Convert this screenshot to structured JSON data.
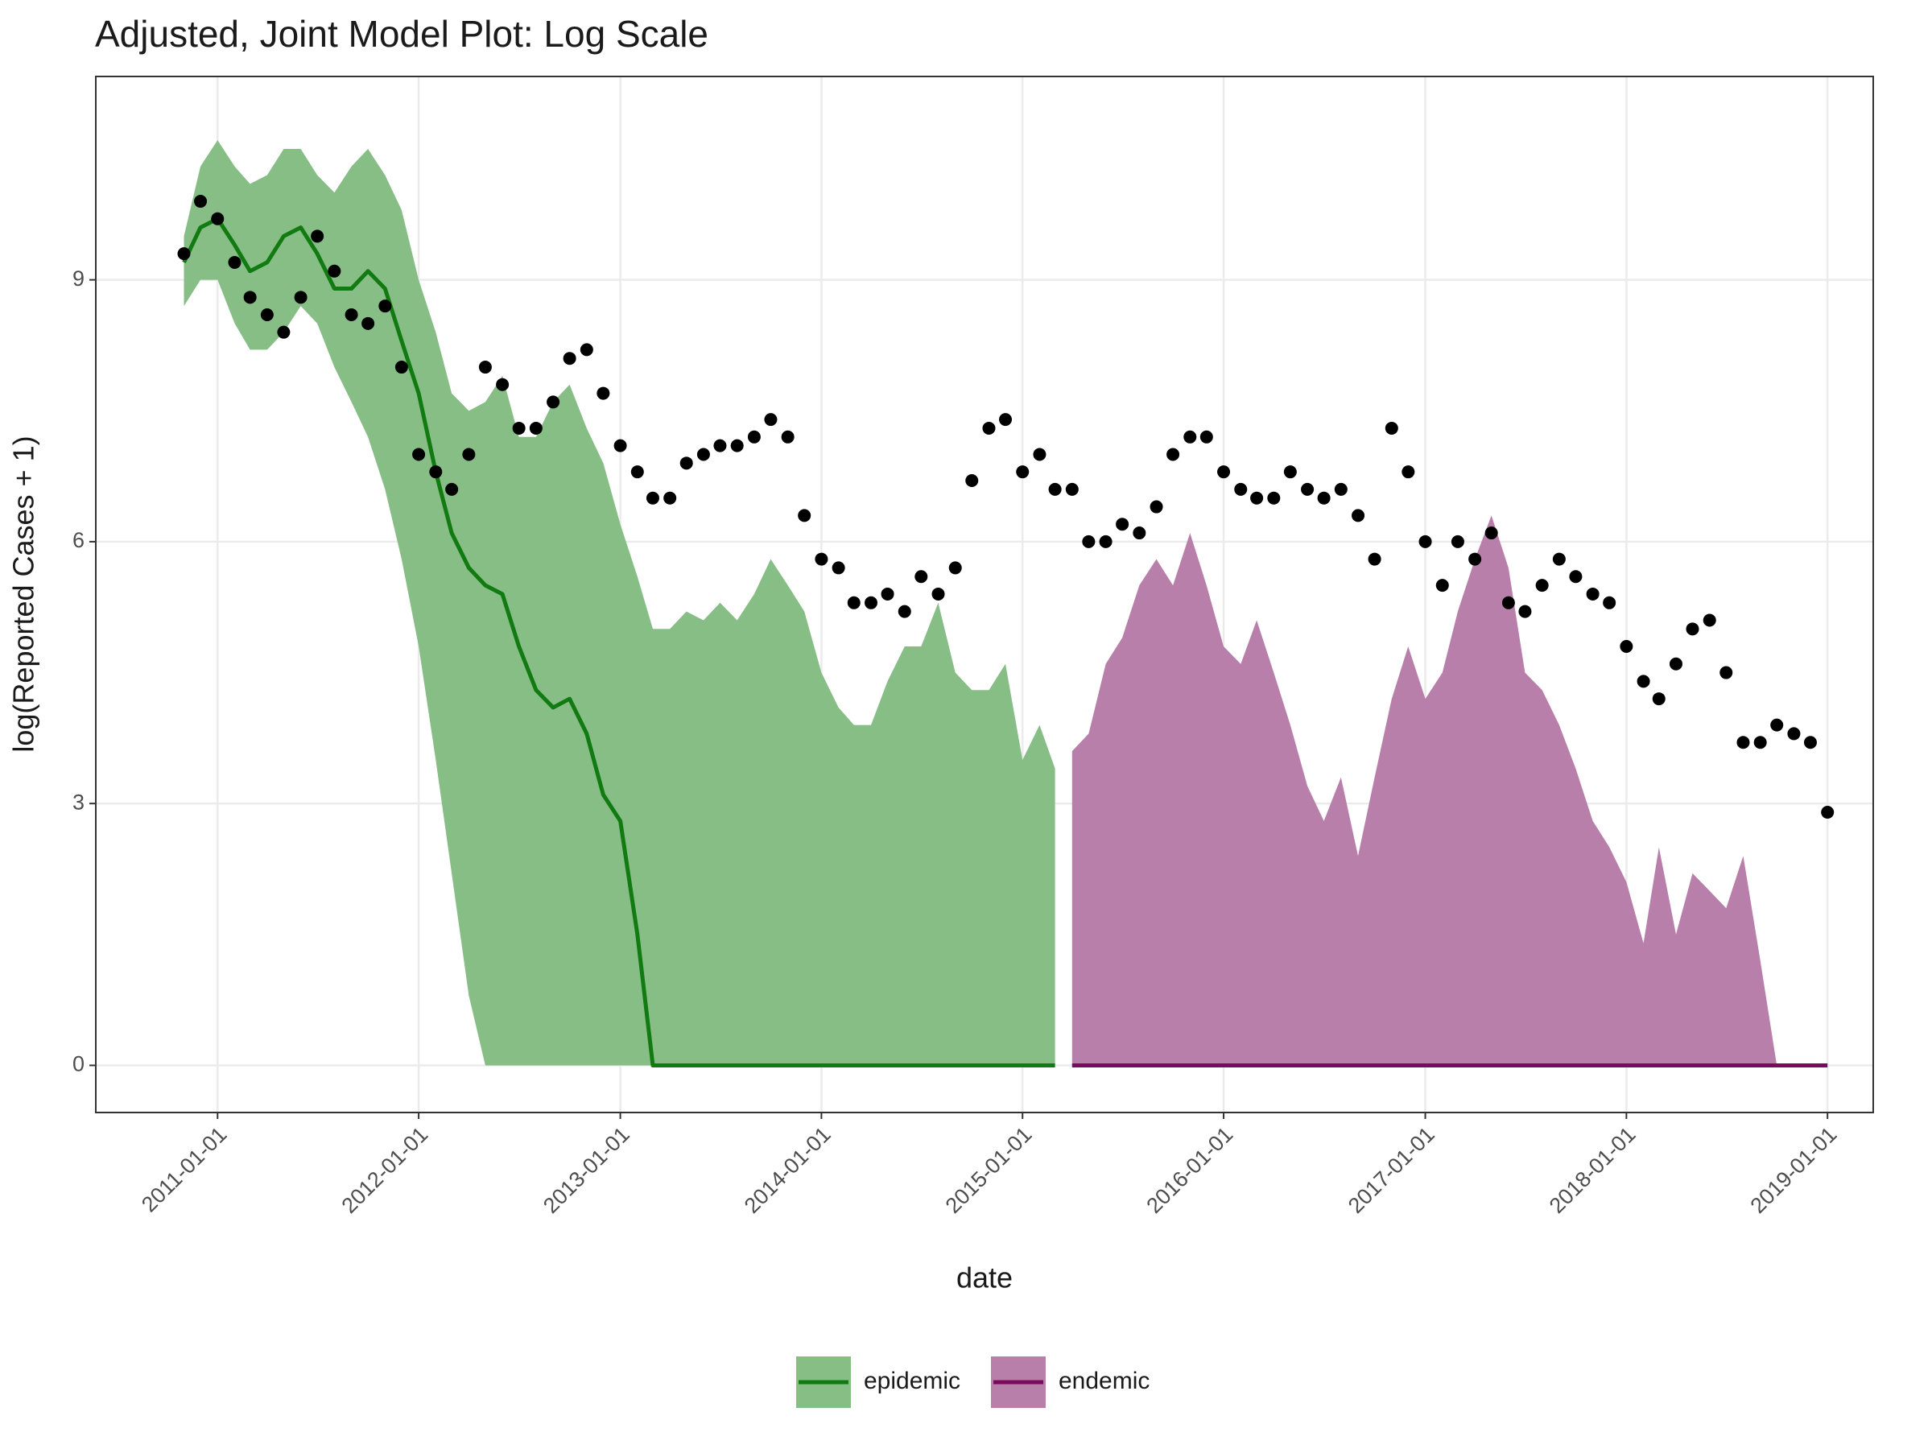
{
  "chart_data": {
    "type": "line",
    "title": "Adjusted, Joint Model Plot: Log Scale",
    "x_label": "date",
    "y_label": "log(Reported Cases + 1)",
    "xlim": [
      "2010-05-25",
      "2019-03-25"
    ],
    "xticks": [
      "2011-01-01",
      "2012-01-01",
      "2013-01-01",
      "2014-01-01",
      "2015-01-01",
      "2016-01-01",
      "2017-01-01",
      "2018-01-01",
      "2019-01-01"
    ],
    "ylim": [
      -0.54,
      11.33
    ],
    "yticks": [
      0,
      3,
      6,
      9
    ],
    "grid": true,
    "legend": "bottom",
    "x": [
      "2010-11-01",
      "2010-12-01",
      "2011-01-01",
      "2011-02-01",
      "2011-03-01",
      "2011-04-01",
      "2011-05-01",
      "2011-06-01",
      "2011-07-01",
      "2011-08-01",
      "2011-09-01",
      "2011-10-01",
      "2011-11-01",
      "2011-12-01",
      "2012-01-01",
      "2012-02-01",
      "2012-03-01",
      "2012-04-01",
      "2012-05-01",
      "2012-06-01",
      "2012-07-01",
      "2012-08-01",
      "2012-09-01",
      "2012-10-01",
      "2012-11-01",
      "2012-12-01",
      "2013-01-01",
      "2013-02-01",
      "2013-03-01",
      "2013-04-01",
      "2013-05-01",
      "2013-06-01",
      "2013-07-01",
      "2013-08-01",
      "2013-09-01",
      "2013-10-01",
      "2013-11-01",
      "2013-12-01",
      "2014-01-01",
      "2014-02-01",
      "2014-03-01",
      "2014-04-01",
      "2014-05-01",
      "2014-06-01",
      "2014-07-01",
      "2014-08-01",
      "2014-09-01",
      "2014-10-01",
      "2014-11-01",
      "2014-12-01",
      "2015-01-01",
      "2015-02-01",
      "2015-03-01",
      "2015-04-01",
      "2015-05-01",
      "2015-06-01",
      "2015-07-01",
      "2015-08-01",
      "2015-09-01",
      "2015-10-01",
      "2015-11-01",
      "2015-12-01",
      "2016-01-01",
      "2016-02-01",
      "2016-03-01",
      "2016-04-01",
      "2016-05-01",
      "2016-06-01",
      "2016-07-01",
      "2016-08-01",
      "2016-09-01",
      "2016-10-01",
      "2016-11-01",
      "2016-12-01",
      "2017-01-01",
      "2017-02-01",
      "2017-03-01",
      "2017-04-01",
      "2017-05-01",
      "2017-06-01",
      "2017-07-01",
      "2017-08-01",
      "2017-09-01",
      "2017-10-01",
      "2017-11-01",
      "2017-12-01",
      "2018-01-01",
      "2018-02-01",
      "2018-03-01",
      "2018-04-01",
      "2018-05-01",
      "2018-06-01",
      "2018-07-01",
      "2018-08-01",
      "2018-09-01",
      "2018-10-01",
      "2018-11-01",
      "2018-12-01",
      "2019-01-01"
    ],
    "observed": {
      "color": "#000000",
      "values": [
        9.3,
        9.9,
        9.7,
        9.2,
        8.8,
        8.6,
        8.4,
        8.8,
        9.5,
        9.1,
        8.6,
        8.5,
        8.7,
        8.0,
        7.0,
        6.8,
        6.6,
        7.0,
        8.0,
        7.8,
        7.3,
        7.3,
        7.6,
        8.1,
        8.2,
        7.7,
        7.1,
        6.8,
        6.5,
        6.5,
        6.9,
        7.0,
        7.1,
        7.1,
        7.2,
        7.4,
        7.2,
        6.3,
        5.8,
        5.7,
        5.3,
        5.3,
        5.4,
        5.2,
        5.6,
        5.4,
        5.7,
        6.7,
        7.3,
        7.4,
        6.8,
        7.0,
        6.6,
        6.6,
        6.0,
        6.0,
        6.2,
        6.1,
        6.4,
        7.0,
        7.2,
        7.2,
        6.8,
        6.6,
        6.5,
        6.5,
        6.8,
        6.6,
        6.5,
        6.6,
        6.3,
        5.8,
        7.3,
        6.8,
        6.0,
        5.5,
        6.0,
        5.8,
        6.1,
        5.3,
        5.2,
        5.5,
        5.8,
        5.6,
        5.4,
        5.3,
        4.8,
        4.4,
        4.2,
        4.6,
        5.0,
        5.1,
        4.5,
        3.7,
        3.7,
        3.9,
        3.8,
        3.7,
        2.9
      ]
    },
    "series": [
      {
        "name": "epidemic",
        "color": "#117a11",
        "fill": "#86be86",
        "values": [
          9.2,
          9.6,
          9.7,
          9.4,
          9.1,
          9.2,
          9.5,
          9.6,
          9.3,
          8.9,
          8.9,
          9.1,
          8.9,
          8.3,
          7.7,
          6.8,
          6.1,
          5.7,
          5.5,
          5.4,
          4.8,
          4.3,
          4.1,
          4.2,
          3.8,
          3.1,
          2.8,
          1.5,
          0,
          0,
          0,
          0,
          0,
          0,
          0,
          0,
          0,
          0,
          0,
          0,
          0,
          0,
          0,
          0,
          0,
          0,
          0,
          0,
          0,
          0,
          0,
          0,
          0,
          null,
          null,
          null,
          null,
          null,
          null,
          null,
          null,
          null,
          null,
          null,
          null,
          null,
          null,
          null,
          null,
          null,
          null,
          null,
          null,
          null,
          null,
          null,
          null,
          null,
          null,
          null,
          null,
          null,
          null,
          null,
          null,
          null,
          null,
          null,
          null,
          null,
          null,
          null,
          null,
          null,
          null,
          null,
          null,
          null,
          null
        ],
        "upper": [
          9.5,
          10.3,
          10.6,
          10.3,
          10.1,
          10.2,
          10.5,
          10.5,
          10.2,
          10.0,
          10.3,
          10.5,
          10.2,
          9.8,
          9.0,
          8.4,
          7.7,
          7.5,
          7.6,
          7.9,
          7.2,
          7.2,
          7.6,
          7.8,
          7.3,
          6.9,
          6.2,
          5.6,
          5.0,
          5.0,
          5.2,
          5.1,
          5.3,
          5.1,
          5.4,
          5.8,
          5.5,
          5.2,
          4.5,
          4.1,
          3.9,
          3.9,
          4.4,
          4.8,
          4.8,
          5.3,
          4.5,
          4.3,
          4.3,
          4.6,
          3.5,
          3.9,
          3.4,
          null,
          null,
          null,
          null,
          null,
          null,
          null,
          null,
          null,
          null,
          null,
          null,
          null,
          null,
          null,
          null,
          null,
          null,
          null,
          null,
          null,
          null,
          null,
          null,
          null,
          null,
          null,
          null,
          null,
          null,
          null,
          null,
          null,
          null,
          null,
          null,
          null,
          null,
          null,
          null,
          null,
          null,
          null,
          null,
          null,
          null
        ],
        "lower": [
          8.7,
          9.0,
          9.0,
          8.5,
          8.2,
          8.2,
          8.4,
          8.7,
          8.5,
          8.0,
          7.6,
          7.2,
          6.6,
          5.8,
          4.8,
          3.5,
          2.2,
          0.8,
          0,
          0,
          0,
          0,
          0,
          0,
          0,
          0,
          0,
          0,
          0,
          0,
          0,
          0,
          0,
          0,
          0,
          0,
          0,
          0,
          0,
          0,
          0,
          0,
          0,
          0,
          0,
          0,
          0,
          0,
          0,
          0,
          0,
          0,
          0,
          null,
          null,
          null,
          null,
          null,
          null,
          null,
          null,
          null,
          null,
          null,
          null,
          null,
          null,
          null,
          null,
          null,
          null,
          null,
          null,
          null,
          null,
          null,
          null,
          null,
          null,
          null,
          null,
          null,
          null,
          null,
          null,
          null,
          null,
          null,
          null,
          null,
          null,
          null,
          null,
          null,
          null,
          null,
          null,
          null,
          null
        ]
      },
      {
        "name": "endemic",
        "color": "#7a0a5e",
        "fill": "#b97fab",
        "values": [
          null,
          null,
          null,
          null,
          null,
          null,
          null,
          null,
          null,
          null,
          null,
          null,
          null,
          null,
          null,
          null,
          null,
          null,
          null,
          null,
          null,
          null,
          null,
          null,
          null,
          null,
          null,
          null,
          null,
          null,
          null,
          null,
          null,
          null,
          null,
          null,
          null,
          null,
          null,
          null,
          null,
          null,
          null,
          null,
          null,
          null,
          null,
          null,
          null,
          null,
          null,
          null,
          null,
          0,
          0,
          0,
          0,
          0,
          0,
          0,
          0,
          0,
          0,
          0,
          0,
          0,
          0,
          0,
          0,
          0,
          0,
          0,
          0,
          0,
          0,
          0,
          0,
          0,
          0,
          0,
          0,
          0,
          0,
          0,
          0,
          0,
          0,
          0,
          0,
          0,
          0,
          0,
          0,
          0,
          0,
          0,
          0,
          0,
          0
        ],
        "upper": [
          null,
          null,
          null,
          null,
          null,
          null,
          null,
          null,
          null,
          null,
          null,
          null,
          null,
          null,
          null,
          null,
          null,
          null,
          null,
          null,
          null,
          null,
          null,
          null,
          null,
          null,
          null,
          null,
          null,
          null,
          null,
          null,
          null,
          null,
          null,
          null,
          null,
          null,
          null,
          null,
          null,
          null,
          null,
          null,
          null,
          null,
          null,
          null,
          null,
          null,
          null,
          null,
          null,
          3.6,
          3.8,
          4.6,
          4.9,
          5.5,
          5.8,
          5.5,
          6.1,
          5.5,
          4.8,
          4.6,
          5.1,
          4.5,
          3.9,
          3.2,
          2.8,
          3.3,
          2.4,
          3.3,
          4.2,
          4.8,
          4.2,
          4.5,
          5.2,
          5.8,
          6.3,
          5.7,
          4.5,
          4.3,
          3.9,
          3.4,
          2.8,
          2.5,
          2.1,
          1.4,
          2.5,
          1.5,
          2.2,
          2.0,
          1.8,
          2.4,
          1.2,
          0,
          0,
          0,
          0
        ],
        "lower": [
          null,
          null,
          null,
          null,
          null,
          null,
          null,
          null,
          null,
          null,
          null,
          null,
          null,
          null,
          null,
          null,
          null,
          null,
          null,
          null,
          null,
          null,
          null,
          null,
          null,
          null,
          null,
          null,
          null,
          null,
          null,
          null,
          null,
          null,
          null,
          null,
          null,
          null,
          null,
          null,
          null,
          null,
          null,
          null,
          null,
          null,
          null,
          null,
          null,
          null,
          null,
          null,
          null,
          0,
          0,
          0,
          0,
          0,
          0,
          0,
          0,
          0,
          0,
          0,
          0,
          0,
          0,
          0,
          0,
          0,
          0,
          0,
          0,
          0,
          0,
          0,
          0,
          0,
          0,
          0,
          0,
          0,
          0,
          0,
          0,
          0,
          0,
          0,
          0,
          0,
          0,
          0,
          0,
          0,
          0,
          0,
          0,
          0,
          0
        ]
      }
    ]
  }
}
